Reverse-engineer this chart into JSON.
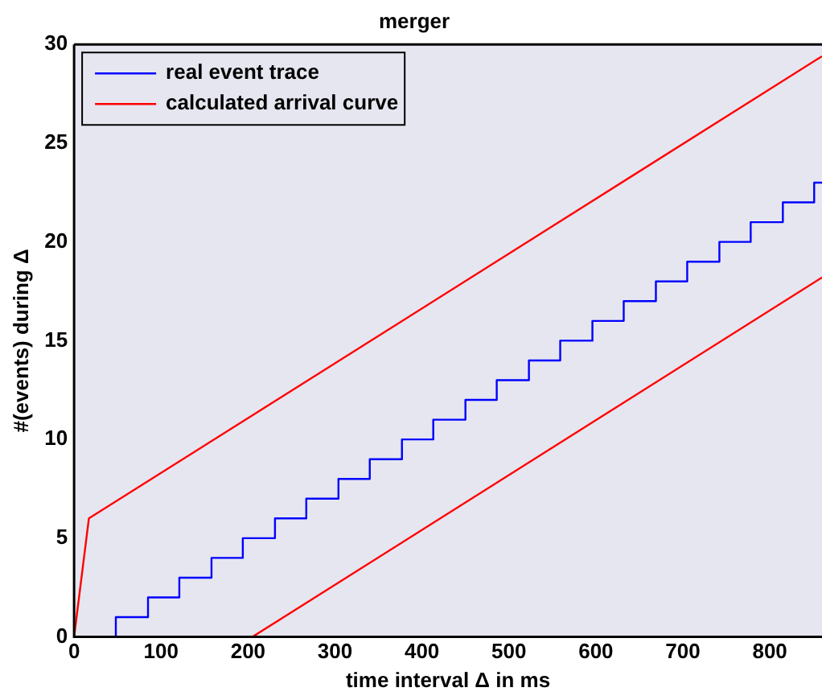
{
  "chart_data": {
    "type": "line",
    "title": "merger",
    "xlabel": "time interval Δ in ms",
    "ylabel": "#(events) during Δ",
    "xlim": [
      0,
      860
    ],
    "ylim": [
      0,
      30
    ],
    "xticks": [
      0,
      100,
      200,
      300,
      400,
      500,
      600,
      700,
      800
    ],
    "yticks": [
      0,
      5,
      10,
      15,
      20,
      25,
      30
    ],
    "grid": false,
    "legend": "top left",
    "marker": "none",
    "line_style": "solid",
    "series": [
      {
        "name": "real event trace",
        "type": "step",
        "color": "#0000ff",
        "x": [
          0,
          48,
          85,
          121,
          158,
          194,
          231,
          267,
          304,
          340,
          377,
          413,
          450,
          486,
          523,
          559,
          596,
          632,
          669,
          705,
          742,
          778,
          815,
          851,
          860
        ],
        "values": [
          0,
          1,
          2,
          3,
          4,
          5,
          6,
          7,
          8,
          9,
          10,
          11,
          12,
          13,
          14,
          15,
          16,
          17,
          18,
          19,
          20,
          21,
          22,
          23,
          23
        ]
      },
      {
        "name": "calculated arrival curve",
        "type": "line",
        "color": "#ff0000",
        "x": [
          0,
          17,
          860
        ],
        "values": [
          0,
          6,
          29.4
        ]
      },
      {
        "type": "line",
        "color": "#ff0000",
        "x": [
          0,
          205,
          860
        ],
        "values": [
          0,
          0,
          18.2
        ]
      }
    ]
  }
}
